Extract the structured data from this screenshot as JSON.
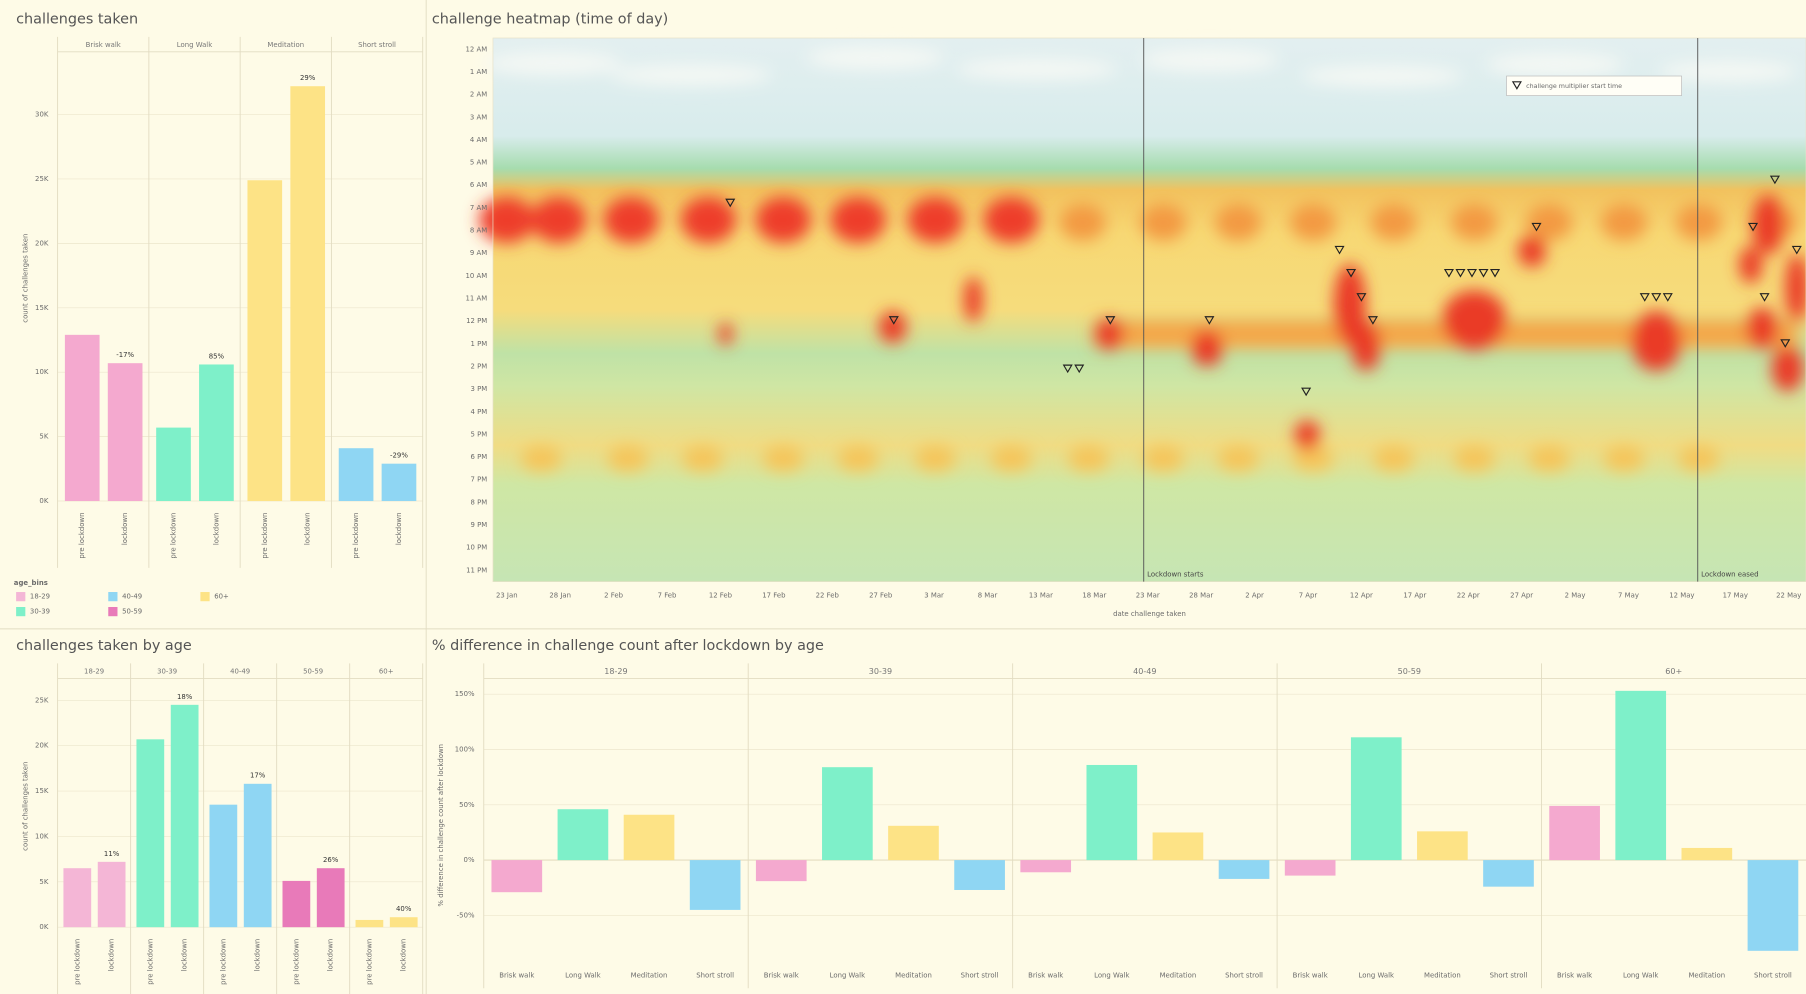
{
  "chart_data": [
    {
      "type": "bar",
      "title": "challenges taken",
      "ylabel": "count of challenges taken",
      "facets": [
        "Brisk walk",
        "Long Walk",
        "Meditation",
        "Short stroll"
      ],
      "categories": [
        "pre lockdown",
        "lockdown"
      ],
      "colors": [
        "#f4a9cf",
        "#7ef0c9",
        "#fde386",
        "#8fd6f3"
      ],
      "values": [
        [
          12900,
          10700
        ],
        [
          5700,
          10600
        ],
        [
          24900,
          32200
        ],
        [
          4100,
          2900
        ]
      ],
      "change_labels": [
        "-17%",
        "85%",
        "29%",
        "-29%"
      ],
      "ylim": [
        0,
        34600
      ],
      "yticks": [
        {
          "value": 0,
          "label": "0K"
        },
        {
          "value": 5000,
          "label": "5K"
        },
        {
          "value": 10000,
          "label": "10K"
        },
        {
          "value": 15000,
          "label": "15K"
        },
        {
          "value": 20000,
          "label": "20K"
        },
        {
          "value": 25000,
          "label": "25K"
        },
        {
          "value": 30000,
          "label": "30K"
        }
      ],
      "legend_title": "age_bins",
      "legend": [
        {
          "name": "18-29",
          "color": "#f4b6d6"
        },
        {
          "name": "30-39",
          "color": "#7ef0c9"
        },
        {
          "name": "40-49",
          "color": "#8fd6f3"
        },
        {
          "name": "50-59",
          "color": "#e87ab9"
        },
        {
          "name": "60+",
          "color": "#fde386"
        }
      ]
    },
    {
      "type": "heatmap",
      "title": "challenge heatmap (time of day)",
      "xlabel": "date challenge taken",
      "xticks": [
        "23 Jan",
        "28 Jan",
        "2 Feb",
        "7 Feb",
        "12 Feb",
        "17 Feb",
        "22 Feb",
        "27 Feb",
        "3 Mar",
        "8 Mar",
        "13 Mar",
        "18 Mar",
        "23 Mar",
        "28 Mar",
        "2 Apr",
        "7 Apr",
        "12 Apr",
        "17 Apr",
        "22 Apr",
        "27 Apr",
        "2 May",
        "7 May",
        "12 May",
        "17 May",
        "22 May"
      ],
      "yticks": [
        "12 AM",
        "1 AM",
        "2 AM",
        "3 AM",
        "4 AM",
        "5 AM",
        "6 AM",
        "7 AM",
        "8 AM",
        "9 AM",
        "10 AM",
        "11 AM",
        "12 PM",
        "1 PM",
        "2 PM",
        "3 PM",
        "4 PM",
        "5 PM",
        "6 PM",
        "7 PM",
        "8 PM",
        "9 PM",
        "10 PM",
        "11 PM"
      ],
      "annotations": [
        "Lockdown starts",
        "Lockdown eased"
      ],
      "marker_legend": "challenge multiplier start time"
    },
    {
      "type": "bar",
      "title": "challenges taken by age",
      "ylabel": "count of challenges taken",
      "facets": [
        "18-29",
        "30-39",
        "40-49",
        "50-59",
        "60+"
      ],
      "categories": [
        "pre lockdown",
        "lockdown"
      ],
      "colors": [
        "#f4b6d6",
        "#7ef0c9",
        "#8fd6f3",
        "#e87ab9",
        "#fde386"
      ],
      "values": [
        [
          6500,
          7200
        ],
        [
          20700,
          24500
        ],
        [
          13500,
          15800
        ],
        [
          5100,
          6500
        ],
        [
          800,
          1100
        ]
      ],
      "change_labels": [
        "11%",
        "18%",
        "17%",
        "26%",
        "40%"
      ],
      "ylim": [
        0,
        26650
      ],
      "yticks": [
        {
          "value": 0,
          "label": "0K"
        },
        {
          "value": 5000,
          "label": "5K"
        },
        {
          "value": 10000,
          "label": "10K"
        },
        {
          "value": 15000,
          "label": "15K"
        },
        {
          "value": 20000,
          "label": "20K"
        },
        {
          "value": 25000,
          "label": "25K"
        }
      ]
    },
    {
      "type": "facet",
      "title": "% difference in challenge count after lockdown by age",
      "ylabel": "% difference in challenge count after lockdown",
      "facets": [
        "18-29",
        "30-39",
        "40-49",
        "50-59",
        "60+"
      ],
      "categories": [
        "Brisk walk",
        "Long Walk",
        "Meditation",
        "Short stroll"
      ],
      "colors": [
        "#f4a9cf",
        "#7ef0c9",
        "#fde386",
        "#8fd6f3"
      ],
      "values": [
        [
          -29,
          46,
          41,
          -45
        ],
        [
          -19,
          84,
          31,
          -27
        ],
        [
          -11,
          86,
          25,
          -17
        ],
        [
          -14,
          111,
          26,
          -24
        ],
        [
          49,
          153,
          11,
          -82
        ]
      ],
      "ylim": [
        -95,
        158
      ],
      "yticks": [
        {
          "value": -50,
          "label": "-50%"
        },
        {
          "value": 0,
          "label": "0%"
        },
        {
          "value": 50,
          "label": "50%"
        },
        {
          "value": 100,
          "label": "100%"
        },
        {
          "value": 150,
          "label": "150%"
        }
      ]
    }
  ]
}
